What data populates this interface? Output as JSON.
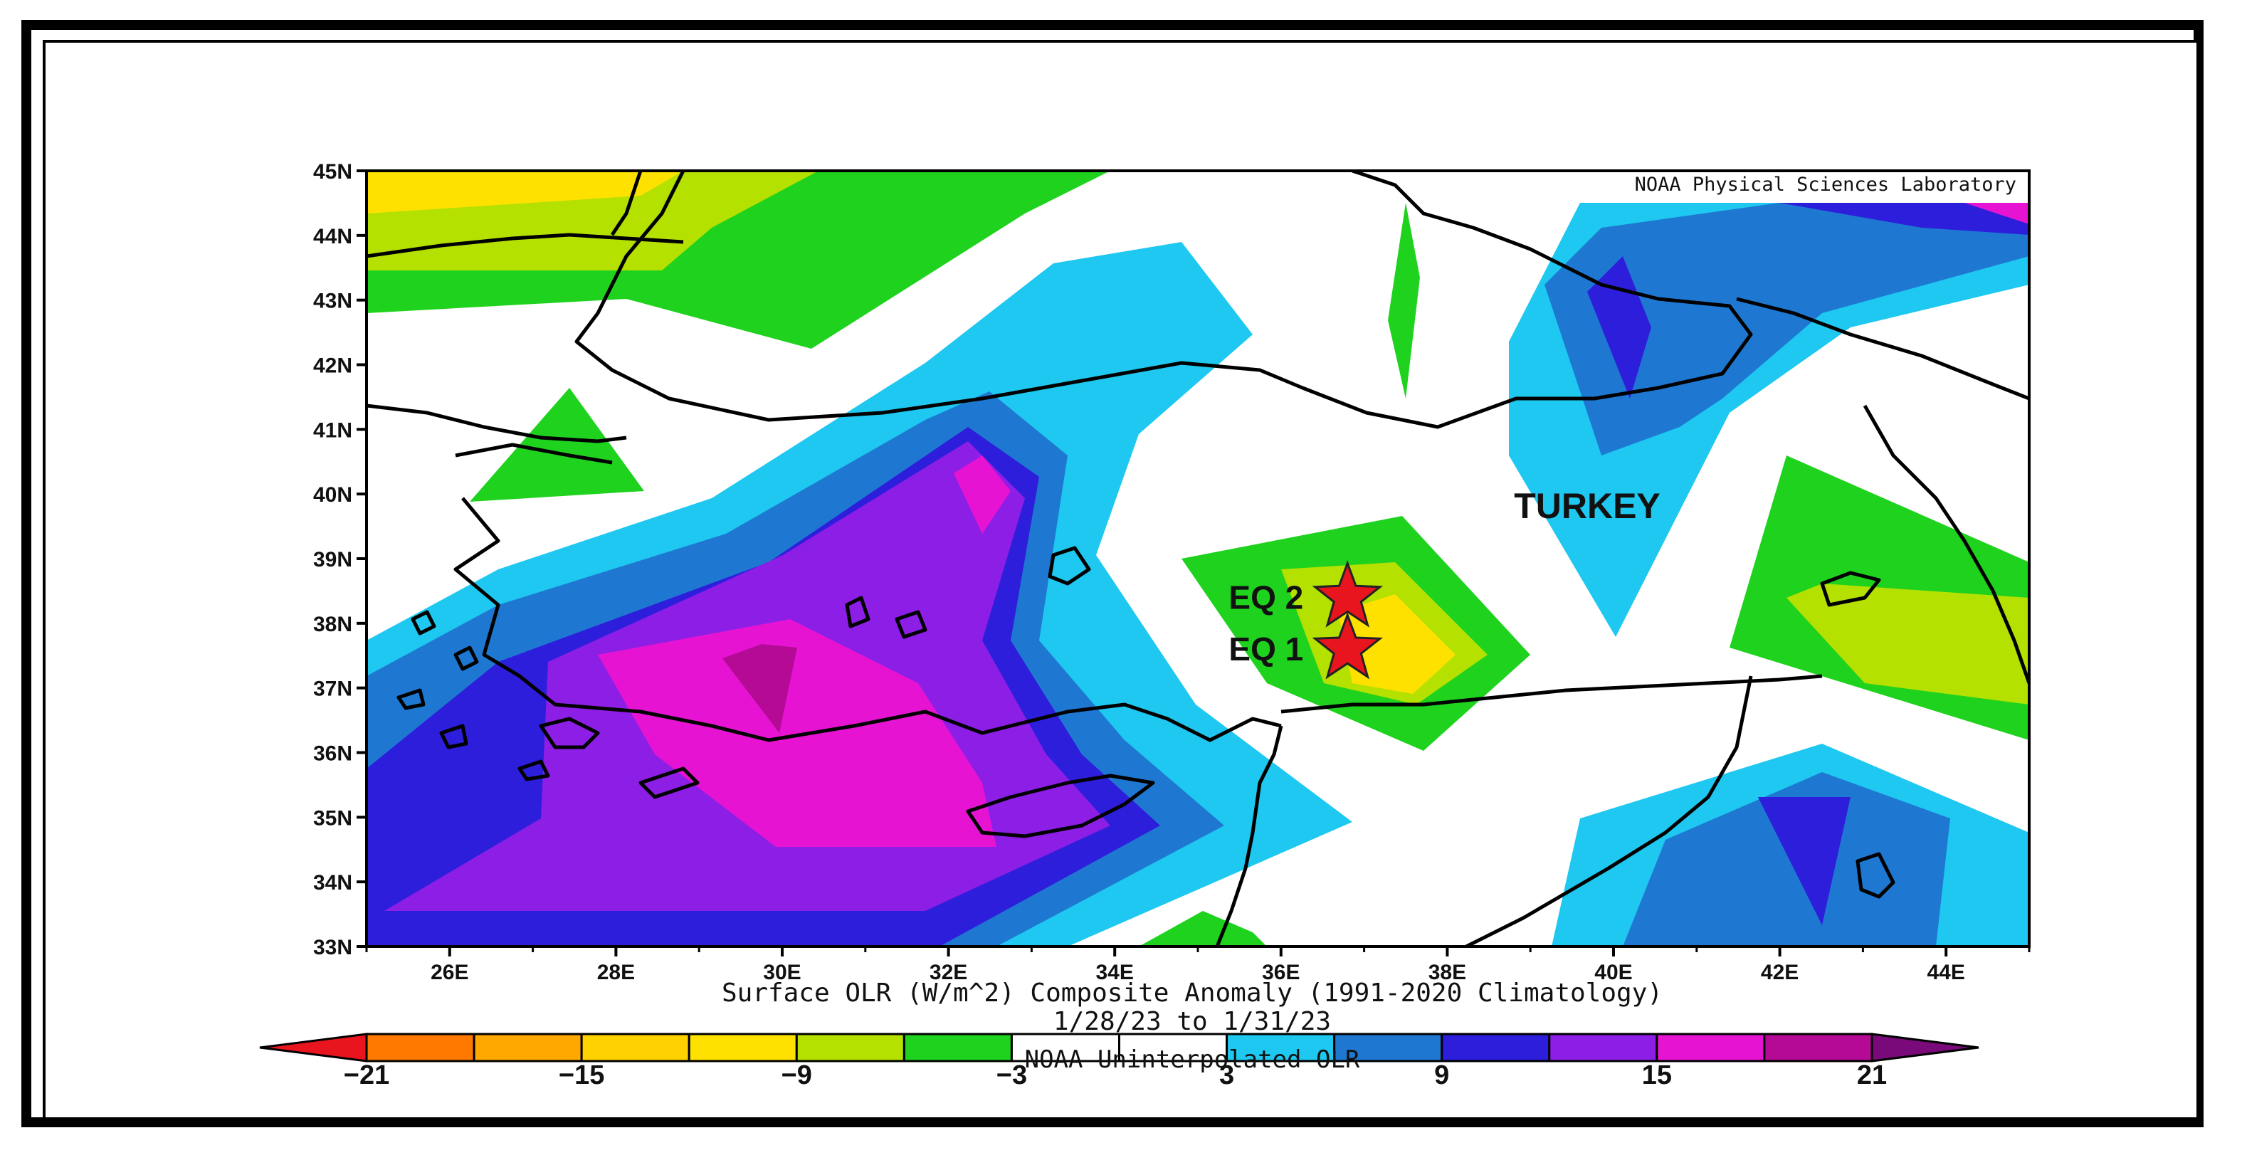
{
  "map": {
    "credit": "NOAA Physical Sciences Laboratory",
    "country_label": "TURKEY",
    "markers": [
      {
        "label": "EQ 2",
        "lon": 36.8,
        "lat": 38.4,
        "color": "#e8141e"
      },
      {
        "label": "EQ 1",
        "lon": 36.8,
        "lat": 37.6,
        "color": "#e8141e"
      }
    ],
    "lat_ticks": [
      "45N",
      "44N",
      "43N",
      "42N",
      "41N",
      "40N",
      "39N",
      "38N",
      "37N",
      "36N",
      "35N",
      "34N",
      "33N"
    ],
    "lon_ticks": [
      "26E",
      "28E",
      "30E",
      "32E",
      "34E",
      "36E",
      "38E",
      "40E",
      "42E",
      "44E"
    ],
    "lat_range": [
      33,
      45
    ],
    "lon_range": [
      25,
      45
    ]
  },
  "caption": {
    "line1": "Surface OLR (W/m^2) Composite Anomaly (1991-2020 Climatology)",
    "line2": "1/28/23  to  1/31/23",
    "line3": "NOAA Uninterpolated OLR"
  },
  "colorbar": {
    "tick_labels": [
      "-21",
      "-15",
      "-9",
      "-3",
      "3",
      "9",
      "15",
      "21"
    ],
    "colors": [
      "#e8141e",
      "#ff7800",
      "#ffa800",
      "#ffd200",
      "#ffe100",
      "#b4e100",
      "#1ed21e",
      "#ffffff",
      "#ffffff",
      "#1ec8f0",
      "#1e78d2",
      "#2d1edc",
      "#8c1ee6",
      "#e614d2",
      "#b40a96",
      "#7a0a7a"
    ]
  },
  "anomaly_colors": {
    "pos1": "#1ec8f0",
    "pos2": "#1e78d2",
    "pos3": "#2d1edc",
    "pos4": "#8c1ee6",
    "pos5": "#e614d2",
    "pos6": "#b40a96",
    "neg1": "#1ed21e",
    "neg2": "#b4e100",
    "neg3": "#ffe100"
  }
}
